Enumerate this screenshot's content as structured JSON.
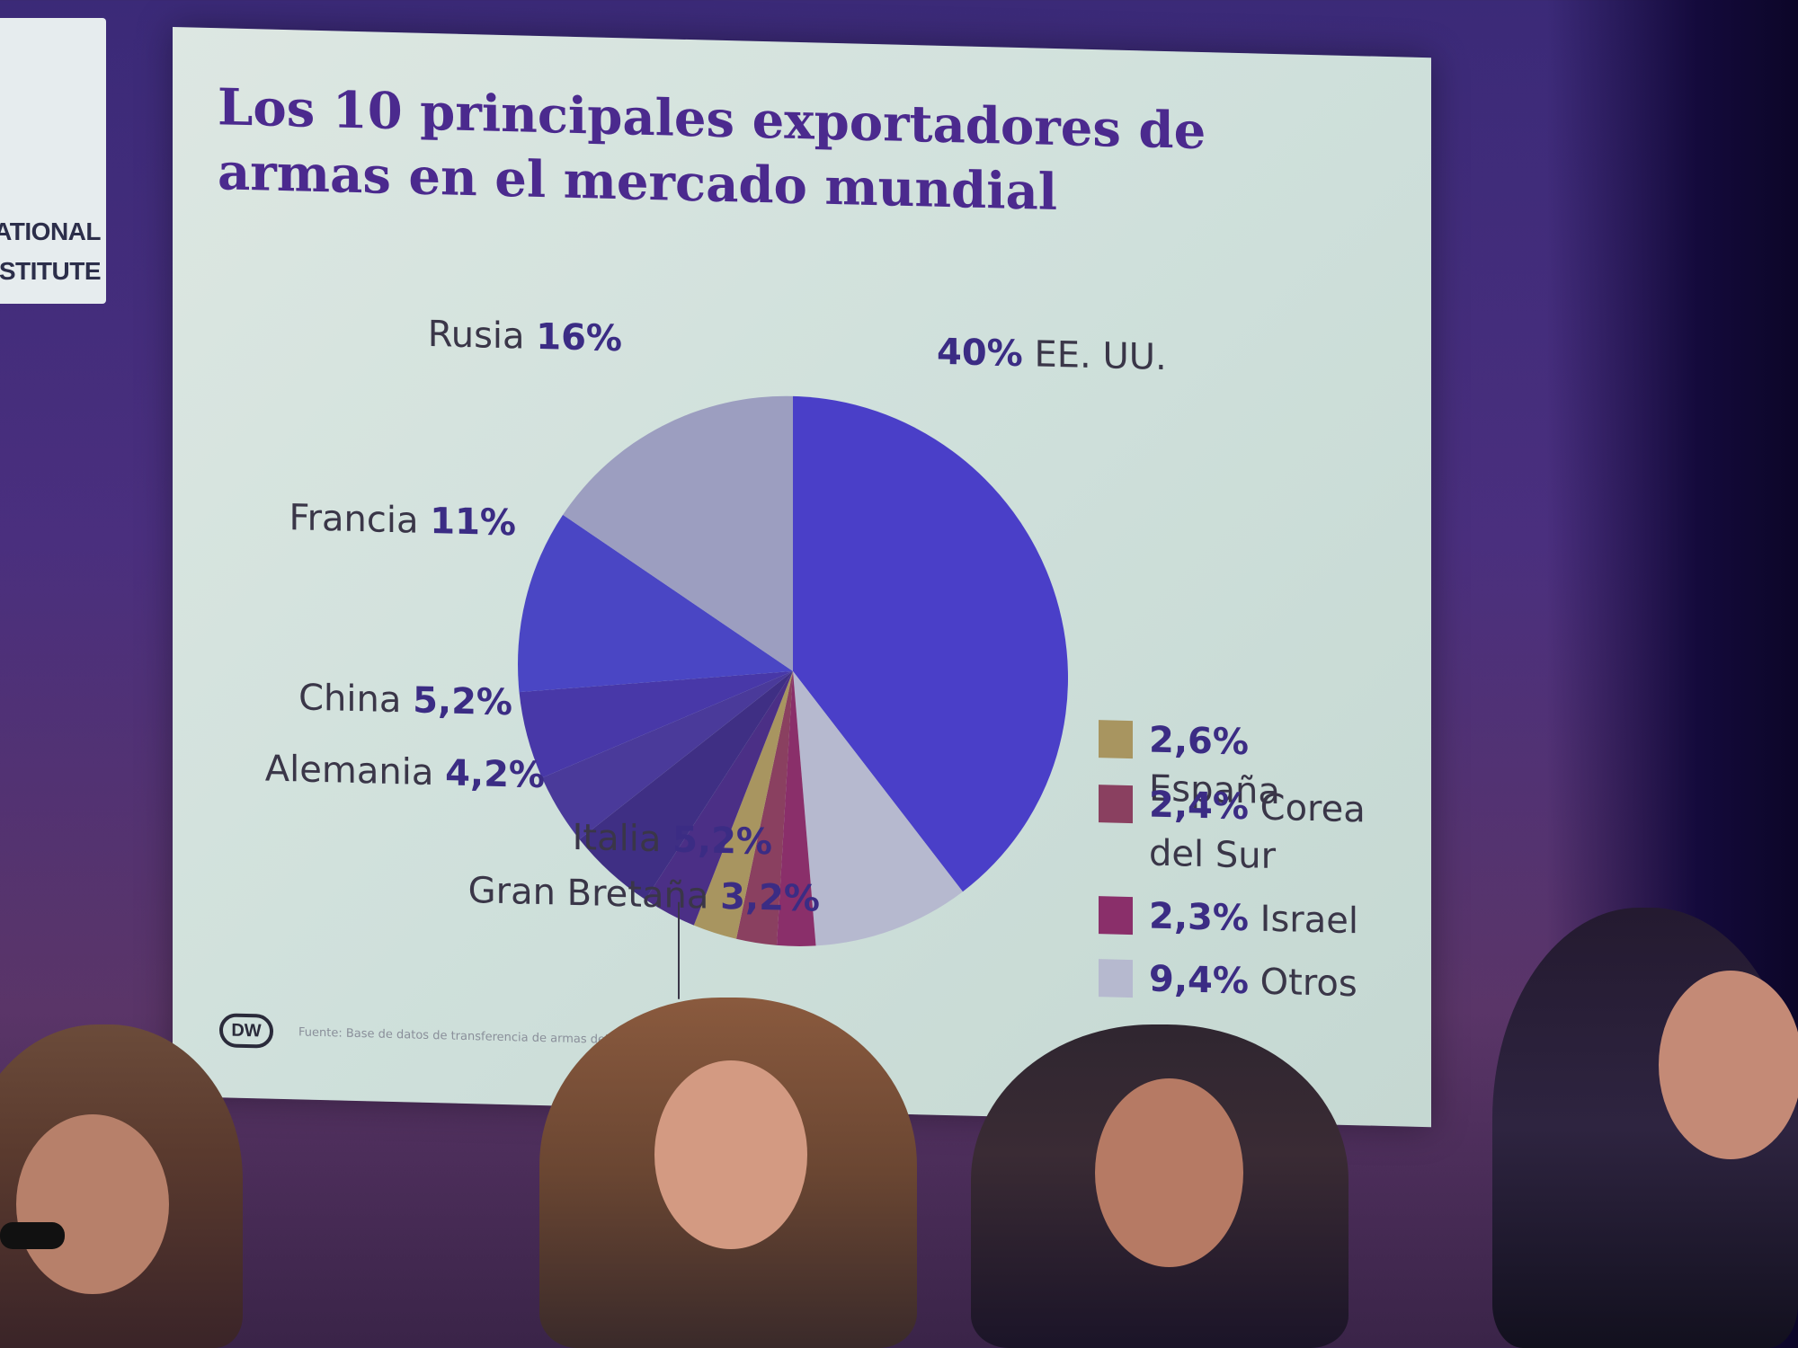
{
  "title": "Los 10 principales exportadores de armas en el mercado mundial",
  "left_panel": {
    "line1": "ATIONAL",
    "line2": "STITUTE"
  },
  "source": "Fuente: Base de datos de transferencia de armas del S... 2023)",
  "logo_text": "DW",
  "colors": {
    "primary_blue": "#4a3fc8",
    "slide_bg": "#d3e3dd",
    "title": "#4b2a8e"
  },
  "chart_data": {
    "type": "pie",
    "title": "Los 10 principales exportadores de armas en el mercado mundial",
    "slices": [
      {
        "name": "EE. UU.",
        "value": 40,
        "label": "40%",
        "color": "#4a3fc8"
      },
      {
        "name": "Otros",
        "value": 9.4,
        "label": "9,4%",
        "color": "#b6b9cf"
      },
      {
        "name": "Israel",
        "value": 2.3,
        "label": "2,3%",
        "color": "#8a2f6a"
      },
      {
        "name": "Corea del Sur",
        "value": 2.4,
        "label": "2,4%",
        "color": "#8a4060"
      },
      {
        "name": "España",
        "value": 2.6,
        "label": "2,6%",
        "color": "#a89560"
      },
      {
        "name": "Gran Bretaña",
        "value": 3.2,
        "label": "3,2%",
        "color": "#4b2f86"
      },
      {
        "name": "Italia",
        "value": 5.2,
        "label": "5,2%",
        "color": "#3f2f84"
      },
      {
        "name": "Alemania",
        "value": 4.2,
        "label": "4,2%",
        "color": "#4a3a9a"
      },
      {
        "name": "China",
        "value": 5.2,
        "label": "5,2%",
        "color": "#4838a8"
      },
      {
        "name": "Francia",
        "value": 11,
        "label": "11%",
        "color": "#4a46c4"
      },
      {
        "name": "Rusia",
        "value": 16,
        "label": "16%",
        "color": "#9c9ec0"
      }
    ],
    "left_labels": [
      {
        "name": "Rusia",
        "pct": "16%"
      },
      {
        "name": "Francia",
        "pct": "11%"
      },
      {
        "name": "China",
        "pct": "5,2%"
      },
      {
        "name": "Alemania",
        "pct": "4,2%"
      },
      {
        "name": "Italia",
        "pct": "5,2%"
      },
      {
        "name": "Gran Bretaña",
        "pct": "3,2%"
      }
    ],
    "top_right_label": {
      "pct": "40%",
      "name": "EE. UU."
    },
    "legend": [
      {
        "pct": "2,6%",
        "name": "España",
        "color": "#a89560"
      },
      {
        "pct": "2,4%",
        "name": "Corea del Sur",
        "color": "#8a4060"
      },
      {
        "pct": "2,3%",
        "name": "Israel",
        "color": "#8a2f6a"
      },
      {
        "pct": "9,4%",
        "name": "Otros",
        "color": "#b6b9cf"
      }
    ]
  }
}
